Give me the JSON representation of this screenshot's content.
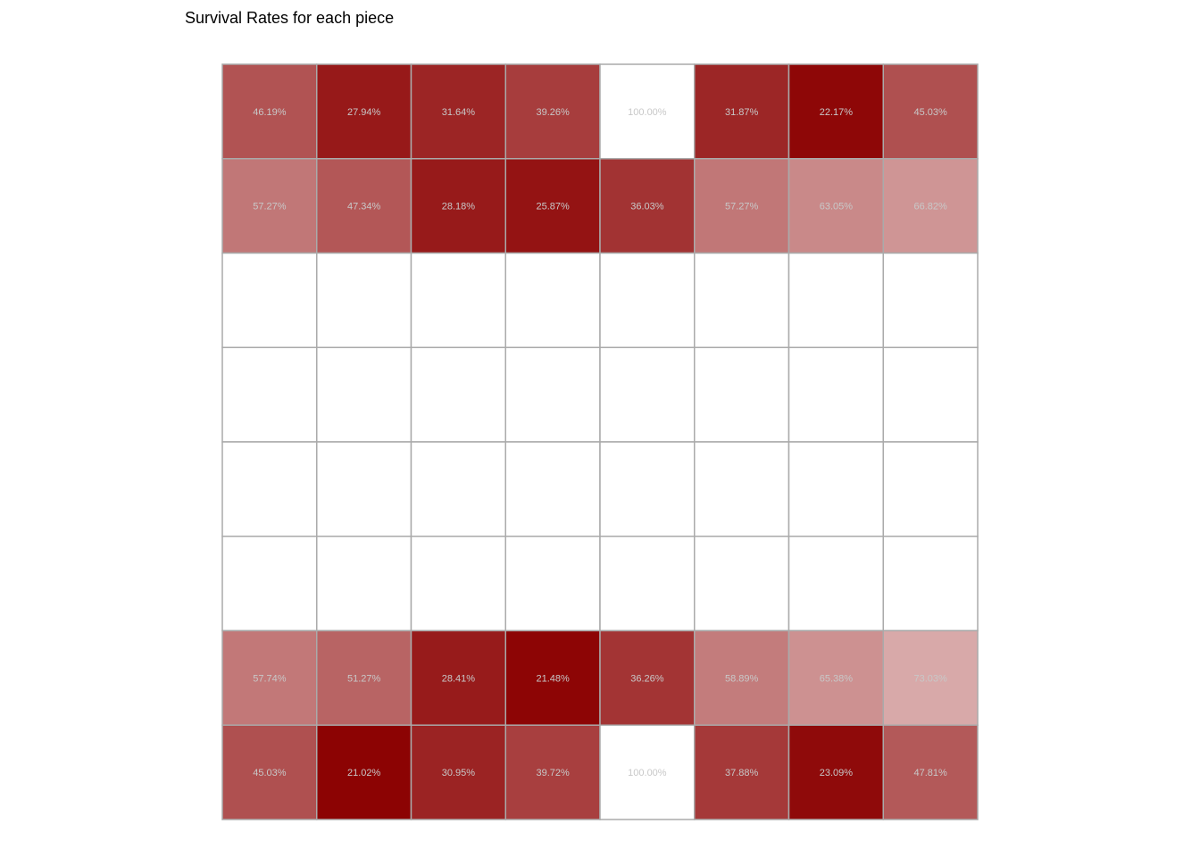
{
  "chart_data": {
    "type": "heatmap",
    "title": "Survival Rates for each piece",
    "rows": 8,
    "cols": 8,
    "grid": true,
    "value_suffix": "%",
    "color_scale": {
      "low_color": "#8b0000",
      "high_color": "#ffffff",
      "range": [
        20,
        100
      ]
    },
    "empty_color": "#ffffff",
    "grid_color": "#aaaaaa",
    "values": [
      [
        46.19,
        27.94,
        31.64,
        39.26,
        100.0,
        31.87,
        22.17,
        45.03
      ],
      [
        57.27,
        47.34,
        28.18,
        25.87,
        36.03,
        57.27,
        63.05,
        66.82
      ],
      [
        null,
        null,
        null,
        null,
        null,
        null,
        null,
        null
      ],
      [
        null,
        null,
        null,
        null,
        null,
        null,
        null,
        null
      ],
      [
        null,
        null,
        null,
        null,
        null,
        null,
        null,
        null
      ],
      [
        null,
        null,
        null,
        null,
        null,
        null,
        null,
        null
      ],
      [
        57.74,
        51.27,
        28.41,
        21.48,
        36.26,
        58.89,
        65.38,
        73.03
      ],
      [
        45.03,
        21.02,
        30.95,
        39.72,
        100.0,
        37.88,
        23.09,
        47.81
      ]
    ]
  }
}
